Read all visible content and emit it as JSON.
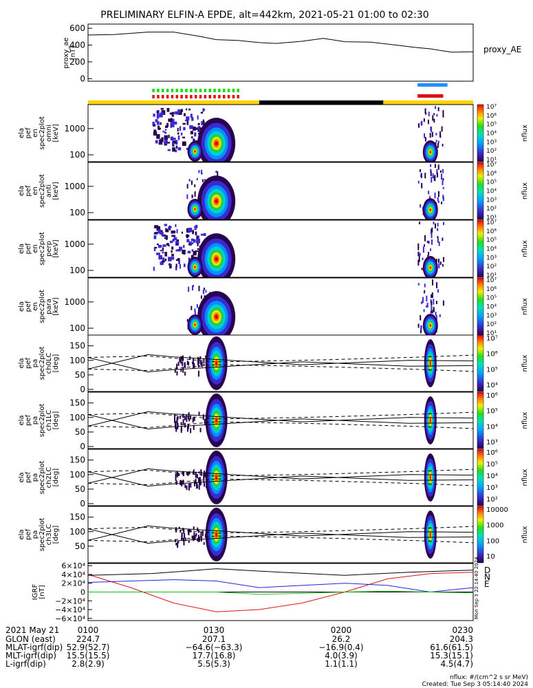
{
  "title": "PRELIMINARY ELFIN-A EPDE, alt=442km, 2021-05-21 01:00 to 02:30",
  "colors": {
    "bar_yellow": "#ffd400",
    "bar_black": "#000000",
    "green": "#11dd11",
    "red": "#dd1111",
    "blue": "#1e90ff",
    "red_line": "#dd1111",
    "blue_line": "#2222dd",
    "green_line": "#11bb11"
  },
  "ae": {
    "ylabel": "proxy_ae\n[nT]",
    "legend": "proxy_AE",
    "yticks": [
      "600",
      "400",
      "200",
      "0"
    ],
    "xy": [
      [
        0,
        520
      ],
      [
        6,
        525
      ],
      [
        14,
        555
      ],
      [
        20,
        555
      ],
      [
        26,
        505
      ],
      [
        30,
        465
      ],
      [
        35,
        455
      ],
      [
        40,
        430
      ],
      [
        44,
        420
      ],
      [
        50,
        445
      ],
      [
        55,
        480
      ],
      [
        60,
        440
      ],
      [
        66,
        435
      ],
      [
        72,
        400
      ],
      [
        76,
        375
      ],
      [
        80,
        355
      ],
      [
        85,
        315
      ],
      [
        90,
        320
      ]
    ]
  },
  "bars": {
    "segments": [
      {
        "t0": 0,
        "t1": 40,
        "color": "#ffd400"
      },
      {
        "t0": 40,
        "t1": 69,
        "color": "#000000"
      },
      {
        "t0": 69,
        "t1": 90,
        "color": "#ffd400"
      }
    ],
    "green_dashes": {
      "t0": 15,
      "t1": 35
    },
    "red_dashes": {
      "t0": 15,
      "t1": 35
    },
    "blue_bar": {
      "t0": 77,
      "t1": 84
    },
    "red_bar": {
      "t0": 77,
      "t1": 83
    }
  },
  "spec_panels": [
    {
      "ylabel": "ela\npef\nen\nspec2plot\nomni\n[keV]",
      "yticks": [
        "1000",
        "100"
      ],
      "cbar": [
        "10⁷",
        "10⁶",
        "10⁵",
        "10⁴",
        "10³",
        "10²",
        "10¹"
      ],
      "cunit": "nflux"
    },
    {
      "ylabel": "ela\npef\nen\nspec2plot\nanti\n[keV]",
      "yticks": [
        "1000",
        "100"
      ],
      "cbar": [
        "10⁷",
        "10⁶",
        "10⁵",
        "10⁴",
        "10³",
        "10²",
        "10¹"
      ],
      "cunit": "nflux"
    },
    {
      "ylabel": "ela\npef\nen\nspec2plot\nperp\n[keV]",
      "yticks": [
        "1000",
        "100"
      ],
      "cbar": [
        "10⁷",
        "10⁶",
        "10⁵",
        "10⁴",
        "10³",
        "10²",
        "10¹"
      ],
      "cunit": "nflux"
    },
    {
      "ylabel": "ela\npef\nen\nspec2plot\npara\n[keV]",
      "yticks": [
        "1000",
        "100"
      ],
      "cbar": [
        "10⁷",
        "10⁶",
        "10⁵",
        "10⁴",
        "10³",
        "10²",
        "10¹"
      ],
      "cunit": "nflux"
    }
  ],
  "pa_panels": [
    {
      "ylabel": "ela\npef\npa\nspec2plot\nch0LC\n[deg]",
      "yticks": [
        "150",
        "100",
        "50",
        "0"
      ],
      "cbar": [
        "10⁷",
        "10⁶",
        "10⁵",
        "10⁴"
      ],
      "cunit": "nflux"
    },
    {
      "ylabel": "ela\npef\npa\nspec2plot\nch1LC\n[deg]",
      "yticks": [
        "150",
        "100",
        "50",
        "0"
      ],
      "cbar": [
        "10⁶",
        "10⁵",
        "10⁴",
        "10³"
      ],
      "cunit": "nflux"
    },
    {
      "ylabel": "ela\npef\npa\nspec2plot\nch2LC\n[deg]",
      "yticks": [
        "150",
        "100",
        "50",
        "0"
      ],
      "cbar": [
        "10⁶",
        "10⁵",
        "10⁴",
        "10³",
        "10²"
      ],
      "cunit": "nflux"
    },
    {
      "ylabel": "ela\npef\npa\nspec2plot\nch3LC\n[deg]",
      "yticks": [
        "150",
        "100",
        "50"
      ],
      "cbar": [
        "10000",
        "1000",
        "100",
        "10"
      ],
      "cunit": "nflux"
    }
  ],
  "igrf": {
    "ylabel": "IGRF\n[nT]",
    "yticks": [
      "6×10⁴",
      "4×10⁴",
      "2×10⁴",
      "0",
      "−2×10⁴",
      "−4×10⁴",
      "−6×10⁴"
    ],
    "legend": [
      {
        "label": "D",
        "color": "#dd1111"
      },
      {
        "label": "N",
        "color": "#2222dd"
      },
      {
        "label": "E",
        "color": "#11bb11"
      }
    ],
    "side_text": "Mon Sep 3 22:14:40 2024"
  },
  "chart_data": {
    "type": "line",
    "title": "PRELIMINARY ELFIN-A EPDE, alt=442km, 2021-05-21 01:00 to 02:30",
    "x_unit": "minutes after 01:00",
    "series": [
      {
        "name": "proxy_AE",
        "x": [
          0,
          6,
          14,
          20,
          26,
          30,
          35,
          40,
          44,
          50,
          55,
          60,
          66,
          72,
          76,
          80,
          85,
          90
        ],
        "values": [
          520,
          525,
          555,
          555,
          505,
          465,
          455,
          430,
          420,
          445,
          480,
          440,
          435,
          400,
          375,
          355,
          315,
          320
        ]
      }
    ],
    "igrf_series": [
      {
        "name": "D",
        "x": [
          0,
          10,
          20,
          30,
          40,
          50,
          60,
          70,
          80,
          90
        ],
        "values": [
          40000,
          10000,
          -25000,
          -45000,
          -40000,
          -25000,
          0,
          30000,
          42000,
          45000
        ]
      },
      {
        "name": "N",
        "x": [
          0,
          10,
          20,
          30,
          40,
          50,
          60,
          70,
          80,
          90
        ],
        "values": [
          22000,
          25000,
          28000,
          25000,
          10000,
          15000,
          20000,
          15000,
          0,
          10000
        ]
      },
      {
        "name": "E",
        "x": [
          0,
          10,
          20,
          30,
          40,
          50,
          60,
          70,
          80,
          90
        ],
        "values": [
          0,
          0,
          0,
          0,
          -5000,
          -3000,
          0,
          2000,
          0,
          -2000
        ]
      }
    ]
  },
  "footer": {
    "date": "2021 May 21",
    "row_labels": [
      "GLON (east)",
      "MLAT-igrf(dip)",
      "MLT-igrf(dip)",
      "L-igrf(dip)"
    ],
    "times": [
      "0100",
      "0130",
      "0200",
      "0230"
    ],
    "glon": [
      "224.7",
      "207.1",
      "26.2",
      "204.3"
    ],
    "mlat": [
      "52.9(52.7)",
      "−64.6(−63.3)",
      "−16.9(0.4)",
      "61.6(61.5)"
    ],
    "mlt": [
      "15.5(15.5)",
      "17.7(16.8)",
      "4.0(3.9)",
      "15.3(15.1)"
    ],
    "lval": [
      "2.8(2.9)",
      "5.5(5.3)",
      "1.1(1.1)",
      "4.5(4.7)"
    ],
    "nflux_note": "nflux: #/(cm^2 s sr MeV)",
    "created": "Created: Tue Sep  3 05:14:40 2024"
  }
}
